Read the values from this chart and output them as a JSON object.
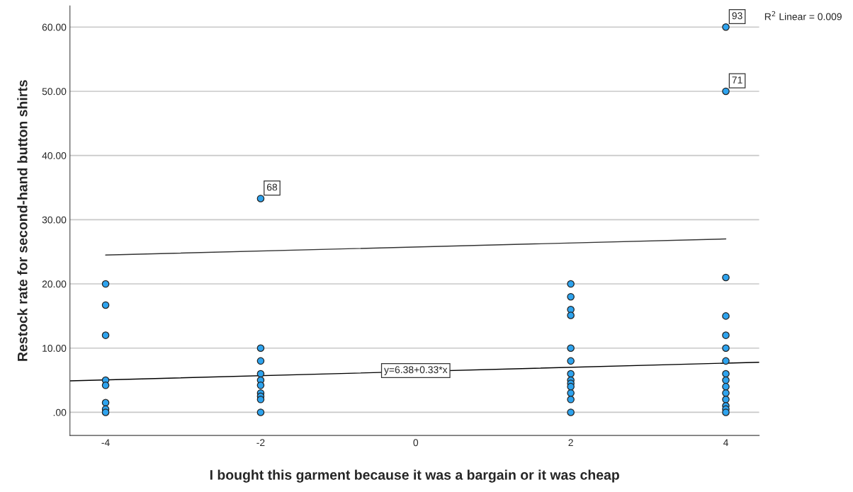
{
  "chart_data": {
    "type": "scatter",
    "xlabel": "I bought this garment because it was a bargain or it was cheap",
    "ylabel": "Restock rate for second-hand button shirts",
    "xlim": [
      -4.46,
      4.43
    ],
    "ylim": [
      -3.6,
      63.3
    ],
    "xticks": [
      -4,
      -2,
      0,
      2,
      4
    ],
    "yticks": [
      {
        "value": 0,
        "label": ".00"
      },
      {
        "value": 10,
        "label": "10.00"
      },
      {
        "value": 20,
        "label": "20.00"
      },
      {
        "value": 30,
        "label": "30.00"
      },
      {
        "value": 40,
        "label": "40.00"
      },
      {
        "value": 50,
        "label": "50.00"
      },
      {
        "value": 60,
        "label": "60.00"
      }
    ],
    "grid": "y",
    "series": [
      {
        "marker": "circle",
        "color": "#2ea3ee",
        "x": [
          -4,
          -4,
          -4,
          -4,
          -4,
          -4,
          -4,
          -4,
          -2,
          -2,
          -2,
          -2,
          -2,
          -2,
          -2,
          -2,
          -2,
          -2,
          2,
          2,
          2,
          2,
          2,
          2,
          2,
          2,
          2,
          2,
          2,
          2,
          2,
          4,
          4,
          4,
          4,
          4,
          4,
          4,
          4,
          4,
          4,
          4,
          4,
          4,
          4,
          4
        ],
        "values": [
          20,
          16.7,
          12,
          5,
          4.2,
          1.5,
          0.5,
          0,
          33.3,
          10,
          8,
          6,
          5,
          4.2,
          3,
          2.5,
          2,
          0,
          20,
          18,
          16,
          15.1,
          10,
          8,
          6,
          5,
          4.5,
          4,
          3,
          2,
          0,
          60,
          50,
          21,
          15,
          12,
          10,
          8,
          6,
          5,
          4,
          3,
          2,
          1,
          0.5,
          0
        ]
      },
      {
        "type": "line",
        "marker": "none",
        "color": "#000000",
        "x": [
          -4.46,
          4.43
        ],
        "values": [
          4.9,
          7.8
        ]
      },
      {
        "type": "line",
        "marker": "none",
        "color": "#333333",
        "x": [
          -4,
          4
        ],
        "values": [
          24.5,
          27.0
        ]
      }
    ],
    "annotations": [
      {
        "text": "68",
        "x": -2,
        "y": 33.3
      },
      {
        "text": "93",
        "x": 4,
        "y": 60
      },
      {
        "text": "71",
        "x": 4,
        "y": 50
      },
      {
        "text": "y=6.38+0.33*x",
        "x": 0,
        "y": 6.5
      },
      "R$^{2}$ Linear = 0.009"
    ]
  }
}
